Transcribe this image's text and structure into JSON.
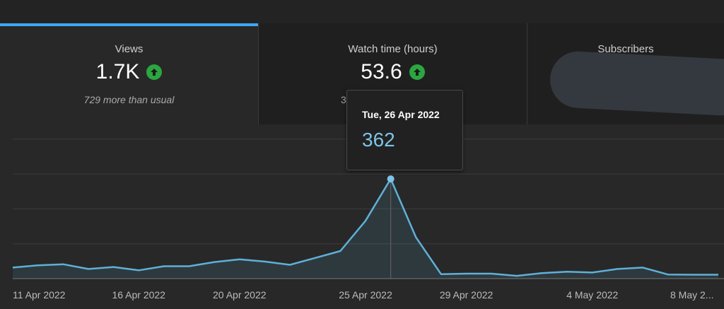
{
  "tabs": [
    {
      "label": "Views",
      "value": "1.7K",
      "sub": "729 more than usual"
    },
    {
      "label": "Watch time (hours)",
      "value": "53.6",
      "sub": "3"
    },
    {
      "label": "Subscribers",
      "value": "",
      "sub": ""
    }
  ],
  "tooltip": {
    "date": "Tue, 26 Apr 2022",
    "value": "362"
  },
  "colors": {
    "accent": "#3ea6ff",
    "line": "#5fb0d8",
    "up": "#2ba640"
  },
  "chart_data": {
    "type": "area",
    "series": [
      {
        "x": [
          "2022-04-11",
          "2022-04-12",
          "2022-04-13",
          "2022-04-14",
          "2022-04-15",
          "2022-04-16",
          "2022-04-17",
          "2022-04-18",
          "2022-04-19",
          "2022-04-20",
          "2022-04-21",
          "2022-04-22",
          "2022-04-23",
          "2022-04-24",
          "2022-04-25",
          "2022-04-26",
          "2022-04-27",
          "2022-04-28",
          "2022-04-29",
          "2022-04-30",
          "2022-05-01",
          "2022-05-02",
          "2022-05-03",
          "2022-05-04",
          "2022-05-05",
          "2022-05-06",
          "2022-05-07",
          "2022-05-08",
          "2022-05-09"
        ],
        "values": [
          40,
          48,
          52,
          35,
          42,
          30,
          45,
          45,
          60,
          70,
          62,
          50,
          75,
          100,
          210,
          362,
          150,
          16,
          18,
          18,
          10,
          20,
          25,
          22,
          35,
          40,
          15,
          14,
          14
        ]
      }
    ],
    "highlight_index": 15,
    "ylim": [
      0,
      400
    ],
    "grid": true,
    "x_tick_labels": [
      "11 Apr 2022",
      "16 Apr 2022",
      "20 Apr 2022",
      "25 Apr 2022",
      "29 Apr 2022",
      "4 May 2022",
      "8 May 2..."
    ],
    "x_tick_index": [
      0,
      5,
      9,
      14,
      18,
      23,
      27
    ]
  }
}
